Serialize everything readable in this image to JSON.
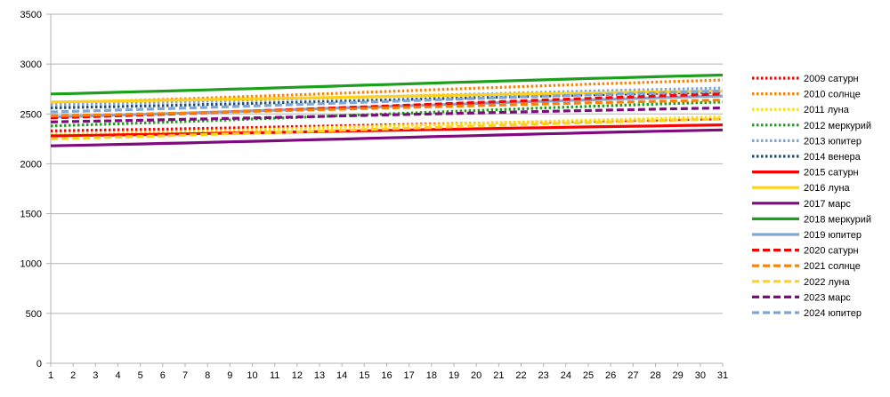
{
  "chart_data": {
    "type": "line",
    "title": "",
    "xlabel": "",
    "ylabel": "",
    "x": [
      1,
      2,
      3,
      4,
      5,
      6,
      7,
      8,
      9,
      10,
      11,
      12,
      13,
      14,
      15,
      16,
      17,
      18,
      19,
      20,
      21,
      22,
      23,
      24,
      25,
      26,
      27,
      28,
      29,
      30,
      31
    ],
    "ylim": [
      0,
      3500
    ],
    "yticks": [
      0,
      500,
      1000,
      1500,
      2000,
      2500,
      3000,
      3500
    ],
    "grid": true,
    "legend_position": "right",
    "series": [
      {
        "name": "2009 сатурн",
        "color": "#ff0000",
        "style": "dotted",
        "start": 2330,
        "end": 2450
      },
      {
        "name": "2010 солнце",
        "color": "#ff7f00",
        "style": "dotted",
        "start": 2610,
        "end": 2840
      },
      {
        "name": "2011 луна",
        "color": "#ffdd00",
        "style": "dotted",
        "start": 2290,
        "end": 2470
      },
      {
        "name": "2012 меркурий",
        "color": "#1ca01c",
        "style": "dotted",
        "start": 2380,
        "end": 2620
      },
      {
        "name": "2013 юпитер",
        "color": "#7fa6d6",
        "style": "dotted",
        "start": 2590,
        "end": 2760
      },
      {
        "name": "2014 венера",
        "color": "#1f4e79",
        "style": "dotted",
        "start": 2560,
        "end": 2720
      },
      {
        "name": "2015 сатурн",
        "color": "#ff0000",
        "style": "solid",
        "start": 2280,
        "end": 2390
      },
      {
        "name": "2016 луна",
        "color": "#ffd11a",
        "style": "solid",
        "start": 2620,
        "end": 2730
      },
      {
        "name": "2017 марс",
        "color": "#7f0a7f",
        "style": "solid",
        "start": 2180,
        "end": 2340
      },
      {
        "name": "2018 меркурий",
        "color": "#1ca01c",
        "style": "solid",
        "start": 2700,
        "end": 2890
      },
      {
        "name": "2019 юпитер",
        "color": "#7fa6d6",
        "style": "solid",
        "start": 2470,
        "end": 2680
      },
      {
        "name": "2020 сатурн",
        "color": "#ff0000",
        "style": "dashed",
        "start": 2460,
        "end": 2700
      },
      {
        "name": "2021 солнце",
        "color": "#ff7f00",
        "style": "dashed",
        "start": 2480,
        "end": 2640
      },
      {
        "name": "2022 луна",
        "color": "#ffd11a",
        "style": "dashed",
        "start": 2250,
        "end": 2450
      },
      {
        "name": "2023 марс",
        "color": "#7f0a7f",
        "style": "dashed",
        "start": 2420,
        "end": 2560
      },
      {
        "name": "2024 юпитер",
        "color": "#7fa6d6",
        "style": "dashed",
        "start": 2520,
        "end": 2730
      }
    ]
  }
}
